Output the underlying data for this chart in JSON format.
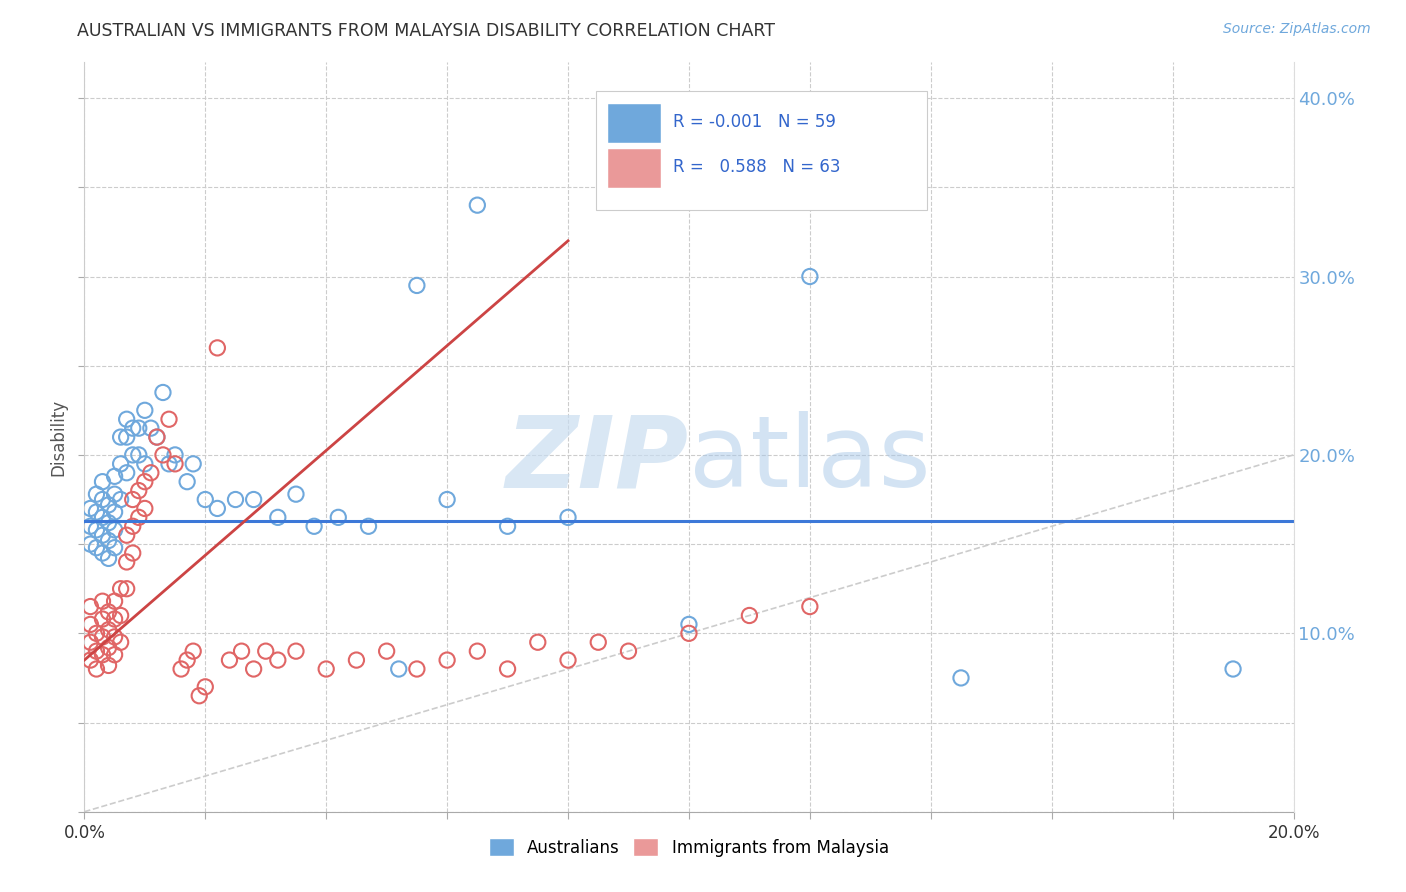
{
  "title": "AUSTRALIAN VS IMMIGRANTS FROM MALAYSIA DISABILITY CORRELATION CHART",
  "source": "Source: ZipAtlas.com",
  "ylabel": "Disability",
  "xlim": [
    0.0,
    0.2
  ],
  "ylim": [
    0.0,
    0.42
  ],
  "x_tick_vals": [
    0.0,
    0.02,
    0.04,
    0.06,
    0.08,
    0.1,
    0.12,
    0.14,
    0.16,
    0.18,
    0.2
  ],
  "y_ticks_left": [
    0.0,
    0.05,
    0.1,
    0.15,
    0.2,
    0.25,
    0.3,
    0.35,
    0.4
  ],
  "y_ticks_right": [
    0.1,
    0.2,
    0.3,
    0.4
  ],
  "background_color": "#ffffff",
  "blue_color": "#6fa8dc",
  "pink_color": "#ea9999",
  "blue_edge": "#6fa8dc",
  "pink_edge": "#e06666",
  "line_blue": "#3c78d8",
  "line_pink": "#cc4444",
  "diagonal_color": "#cccccc",
  "grid_color": "#cccccc",
  "legend_R_blue": "-0.001",
  "legend_N_blue": "59",
  "legend_R_pink": "0.588",
  "legend_N_pink": "63",
  "blue_h_line_y": 0.163,
  "watermark_zip_color": "#c9ddf0",
  "watermark_atlas_color": "#a8c8e8",
  "aus_x": [
    0.001,
    0.001,
    0.001,
    0.002,
    0.002,
    0.002,
    0.002,
    0.003,
    0.003,
    0.003,
    0.003,
    0.003,
    0.004,
    0.004,
    0.004,
    0.004,
    0.005,
    0.005,
    0.005,
    0.005,
    0.005,
    0.006,
    0.006,
    0.006,
    0.007,
    0.007,
    0.007,
    0.008,
    0.008,
    0.009,
    0.009,
    0.01,
    0.01,
    0.011,
    0.012,
    0.013,
    0.014,
    0.015,
    0.017,
    0.018,
    0.02,
    0.022,
    0.025,
    0.028,
    0.032,
    0.035,
    0.038,
    0.042,
    0.047,
    0.052,
    0.06,
    0.07,
    0.08,
    0.1,
    0.12,
    0.145,
    0.19,
    0.055,
    0.065
  ],
  "aus_y": [
    0.15,
    0.16,
    0.17,
    0.148,
    0.158,
    0.168,
    0.178,
    0.145,
    0.155,
    0.165,
    0.175,
    0.185,
    0.142,
    0.152,
    0.162,
    0.172,
    0.148,
    0.158,
    0.168,
    0.178,
    0.188,
    0.175,
    0.195,
    0.21,
    0.19,
    0.21,
    0.22,
    0.2,
    0.215,
    0.2,
    0.215,
    0.195,
    0.225,
    0.215,
    0.21,
    0.235,
    0.195,
    0.2,
    0.185,
    0.195,
    0.175,
    0.17,
    0.175,
    0.175,
    0.165,
    0.178,
    0.16,
    0.165,
    0.16,
    0.08,
    0.175,
    0.16,
    0.165,
    0.105,
    0.3,
    0.075,
    0.08,
    0.295,
    0.34
  ],
  "mal_x": [
    0.001,
    0.001,
    0.001,
    0.001,
    0.002,
    0.002,
    0.002,
    0.003,
    0.003,
    0.003,
    0.003,
    0.004,
    0.004,
    0.004,
    0.004,
    0.005,
    0.005,
    0.005,
    0.005,
    0.006,
    0.006,
    0.006,
    0.007,
    0.007,
    0.007,
    0.008,
    0.008,
    0.008,
    0.009,
    0.009,
    0.01,
    0.01,
    0.011,
    0.012,
    0.013,
    0.014,
    0.015,
    0.016,
    0.017,
    0.018,
    0.019,
    0.02,
    0.022,
    0.024,
    0.026,
    0.028,
    0.03,
    0.032,
    0.035,
    0.04,
    0.045,
    0.05,
    0.055,
    0.06,
    0.065,
    0.07,
    0.075,
    0.08,
    0.085,
    0.09,
    0.1,
    0.11,
    0.12
  ],
  "mal_y": [
    0.085,
    0.095,
    0.105,
    0.115,
    0.08,
    0.09,
    0.1,
    0.088,
    0.098,
    0.108,
    0.118,
    0.082,
    0.092,
    0.102,
    0.112,
    0.088,
    0.098,
    0.108,
    0.118,
    0.095,
    0.11,
    0.125,
    0.125,
    0.14,
    0.155,
    0.145,
    0.16,
    0.175,
    0.165,
    0.18,
    0.17,
    0.185,
    0.19,
    0.21,
    0.2,
    0.22,
    0.195,
    0.08,
    0.085,
    0.09,
    0.065,
    0.07,
    0.26,
    0.085,
    0.09,
    0.08,
    0.09,
    0.085,
    0.09,
    0.08,
    0.085,
    0.09,
    0.08,
    0.085,
    0.09,
    0.08,
    0.095,
    0.085,
    0.095,
    0.09,
    0.1,
    0.11,
    0.115
  ],
  "pink_line_x0": 0.0,
  "pink_line_y0": 0.085,
  "pink_line_x1": 0.08,
  "pink_line_y1": 0.32
}
